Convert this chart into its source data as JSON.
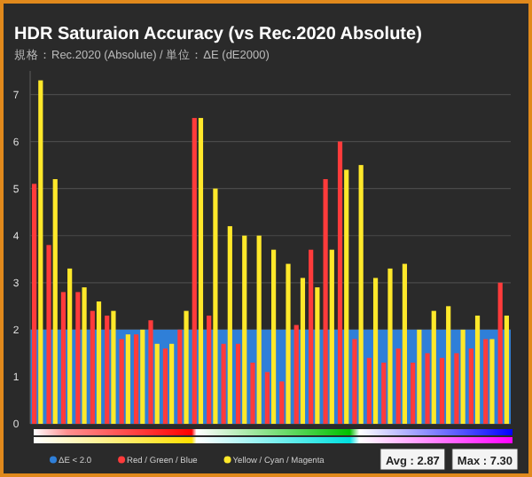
{
  "chart_data": {
    "type": "bar",
    "title": "HDR Saturaion Accuracy (vs Rec.2020 Absolute)",
    "subtitle": "規格：Rec.2020 (Absolute) / 単位：ΔE (dE2000)",
    "categories": [
      null,
      null,
      null,
      null,
      null,
      null,
      null,
      null,
      null,
      null,
      null,
      null,
      null,
      null,
      null,
      null,
      null,
      null,
      null,
      null,
      null,
      null,
      null,
      null,
      null,
      null,
      null,
      null,
      null,
      null,
      null,
      null,
      null
    ],
    "series": [
      {
        "name": "Red / Green / Blue",
        "color": "#ff3b3b",
        "values": [
          5.1,
          3.8,
          2.8,
          2.8,
          2.4,
          2.3,
          1.8,
          1.9,
          2.2,
          1.6,
          2.0,
          6.5,
          2.3,
          1.7,
          1.7,
          1.3,
          1.1,
          0.9,
          2.1,
          3.7,
          5.2,
          6.0,
          1.8,
          1.4,
          1.3,
          1.6,
          1.3,
          1.5,
          1.4,
          1.5,
          1.6,
          1.8,
          3.0
        ]
      },
      {
        "name": "Yellow / Cyan / Magenta",
        "color": "#ffe82a",
        "values": [
          7.3,
          5.2,
          3.3,
          2.9,
          2.6,
          2.4,
          1.9,
          2.0,
          1.7,
          1.7,
          2.4,
          6.5,
          5.0,
          4.2,
          4.0,
          4.0,
          3.7,
          3.4,
          3.1,
          2.9,
          3.7,
          5.4,
          5.5,
          3.1,
          3.3,
          3.4,
          2.0,
          2.4,
          2.5,
          2.0,
          2.3,
          1.8,
          2.3
        ]
      }
    ],
    "bands": [
      {
        "axis": "y",
        "from": 0,
        "to": 2,
        "label": "ΔE < 2.0",
        "color": "#2f7fd8"
      }
    ],
    "ylim": [
      0,
      7.5
    ],
    "yticks": [
      0,
      1,
      2,
      3,
      4,
      5,
      6,
      7
    ],
    "grid": "y",
    "legend": "bottom",
    "annotations": [
      "Avg : 2.87",
      "Max : 7.30"
    ]
  }
}
